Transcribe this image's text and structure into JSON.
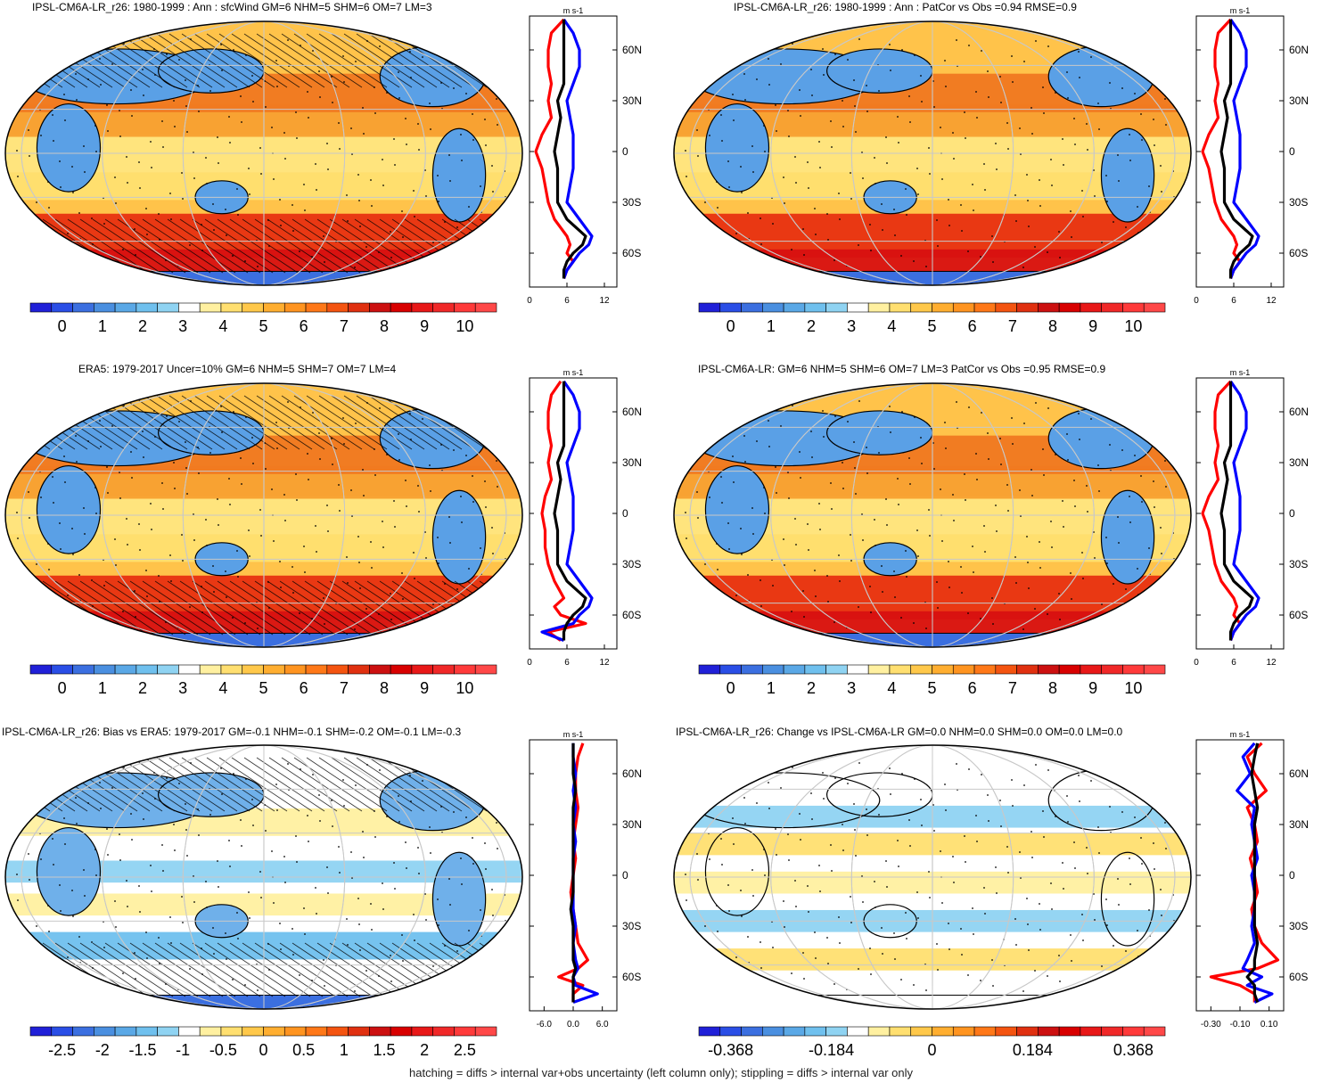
{
  "footnote": "hatching = diffs > internal var+obs uncertainty (left column only); stippling = diffs > internal var only",
  "profile_unit": "m s-1",
  "lat_ticks": [
    "60N",
    "30N",
    "0",
    "30S",
    "60S"
  ],
  "colorbars": {
    "wind": {
      "labels": [
        "0",
        "1",
        "2",
        "3",
        "4",
        "5",
        "6",
        "7",
        "8",
        "9",
        "10"
      ],
      "colors": [
        "#2020d8",
        "#2a4ee6",
        "#3b6fe0",
        "#4a8fe0",
        "#5aa8e6",
        "#6fc0ee",
        "#8fd3f2",
        "#ffffff",
        "#fff0a0",
        "#ffdf70",
        "#ffc84a",
        "#ffae30",
        "#ff9420",
        "#ff7818",
        "#f45410",
        "#e03010",
        "#cc1010",
        "#d80000",
        "#e81818",
        "#f02828",
        "#ff3a3a",
        "#ff4848"
      ]
    },
    "bias": {
      "labels": [
        "-2.5",
        "-2",
        "-1.5",
        "-1",
        "-0.5",
        "0",
        "0.5",
        "1",
        "1.5",
        "2",
        "2.5"
      ],
      "colors": [
        "#2020d8",
        "#2a4ee6",
        "#3b6fe0",
        "#4a8fe0",
        "#5aa8e6",
        "#6fc0ee",
        "#8fd3f2",
        "#ffffff",
        "#fff0a0",
        "#ffdf70",
        "#ffc84a",
        "#ffae30",
        "#ff9420",
        "#ff7818",
        "#f45410",
        "#e03010",
        "#cc1010",
        "#d80000",
        "#e81818",
        "#f02828",
        "#ff3a3a",
        "#ff4848"
      ]
    },
    "change": {
      "labels": [
        "-0.368",
        "-0.184",
        "0",
        "0.184",
        "0.368"
      ],
      "colors": [
        "#2020d8",
        "#2a4ee6",
        "#3b6fe0",
        "#4a8fe0",
        "#5aa8e6",
        "#6fc0ee",
        "#8fd3f2",
        "#ffffff",
        "#fff0a0",
        "#ffdf70",
        "#ffc84a",
        "#ffae30",
        "#ff9420",
        "#ff7818",
        "#f45410",
        "#e03010",
        "#cc1010",
        "#d80000",
        "#e81818",
        "#f02828",
        "#ff3a3a",
        "#ff4848"
      ]
    }
  },
  "panels": [
    {
      "id": "p1",
      "title": "IPSL-CM6A-LR_r26: 1980-1999 : Ann : sfcWind GM=6 NHM=5 SHM=6 OM=7 LM=3",
      "colorbar": "wind",
      "hatching": true,
      "profile_xticks": [
        "0",
        "6",
        "12"
      ],
      "profile_xlim": [
        0,
        14
      ]
    },
    {
      "id": "p2",
      "title": "IPSL-CM6A-LR_r26: 1980-1999 : Ann : PatCor vs Obs =0.94 RMSE=0.9",
      "colorbar": "wind",
      "hatching": false,
      "profile_xticks": [
        "0",
        "6",
        "12"
      ],
      "profile_xlim": [
        0,
        14
      ]
    },
    {
      "id": "p3",
      "title": "ERA5: 1979-2017 Uncer=10% GM=6 NHM=5 SHM=7 OM=7 LM=4",
      "colorbar": "wind",
      "hatching": true,
      "profile_xticks": [
        "0",
        "6",
        "12"
      ],
      "profile_xlim": [
        0,
        14
      ]
    },
    {
      "id": "p4",
      "title": "IPSL-CM6A-LR: GM=6 NHM=5 SHM=6 OM=7 LM=3 PatCor vs Obs =0.95 RMSE=0.9",
      "colorbar": "wind",
      "hatching": false,
      "profile_xticks": [
        "0",
        "6",
        "12"
      ],
      "profile_xlim": [
        0,
        14
      ]
    },
    {
      "id": "p5",
      "title": "IPSL-CM6A-LR_r26: Bias vs ERA5: 1979-2017 GM=-0.1 NHM=-0.1 SHM=-0.2 OM=-0.1 LM=-0.3",
      "colorbar": "bias",
      "hatching": true,
      "profile_xticks": [
        "-6.0",
        "0.0",
        "6.0"
      ],
      "profile_xlim": [
        -9,
        9
      ]
    },
    {
      "id": "p6",
      "title": "IPSL-CM6A-LR_r26: Change vs IPSL-CM6A-LR GM=0.0 NHM=0.0 SHM=0.0 OM=0.0 LM=0.0",
      "colorbar": "change",
      "hatching": false,
      "profile_xticks": [
        "-0.30",
        "-0.10",
        "0.10"
      ],
      "profile_xlim": [
        -0.4,
        0.2
      ]
    }
  ],
  "chart_data": [
    {
      "type": "line",
      "title": "IPSL-CM6A-LR_r26: 1980-1999 : Ann : sfcWind GM=6 NHM=5 SHM=6 OM=7 LM=3",
      "xlabel": "m s-1",
      "xlim": [
        0,
        14
      ],
      "ylim": [
        -80,
        80
      ],
      "y_lat": [
        78,
        70,
        60,
        50,
        40,
        30,
        20,
        10,
        0,
        -10,
        -20,
        -30,
        -40,
        -50,
        -55,
        -60,
        -65,
        -70,
        -75
      ],
      "series": [
        {
          "color": "#ff0000",
          "values": [
            5.5,
            3.5,
            3,
            3,
            3.5,
            3,
            3.5,
            2,
            1,
            2,
            2.5,
            3,
            4,
            6,
            6.5,
            6,
            7,
            6,
            5.5
          ]
        },
        {
          "color": "#0000ff",
          "values": [
            5.5,
            7,
            8,
            8,
            7,
            6,
            6.5,
            7,
            7,
            7,
            6.5,
            6,
            8,
            10,
            9.5,
            8,
            7,
            6,
            5.5
          ]
        },
        {
          "color": "#000000",
          "values": [
            5.5,
            5.5,
            5.5,
            5.5,
            5.5,
            4.5,
            5,
            4.5,
            4,
            4.5,
            4.5,
            4.5,
            6,
            9,
            8.5,
            7,
            6,
            5.5,
            5.5
          ]
        }
      ]
    },
    {
      "type": "line",
      "title": "IPSL-CM6A-LR_r26: 1980-1999 : Ann : PatCor vs Obs =0.94 RMSE=0.9",
      "xlabel": "m s-1",
      "xlim": [
        0,
        14
      ],
      "ylim": [
        -80,
        80
      ],
      "y_lat": [
        78,
        70,
        60,
        50,
        40,
        30,
        20,
        10,
        0,
        -10,
        -20,
        -30,
        -40,
        -50,
        -55,
        -60,
        -65,
        -70,
        -75
      ],
      "series": [
        {
          "color": "#ff0000",
          "values": [
            5.5,
            3.5,
            3,
            3,
            3.5,
            3,
            3.5,
            2,
            1,
            2,
            2.5,
            3,
            4,
            6,
            6.5,
            6,
            7,
            6,
            5.5
          ]
        },
        {
          "color": "#0000ff",
          "values": [
            5.5,
            7,
            8,
            8,
            7,
            6,
            6.5,
            7,
            7,
            7,
            6.5,
            6,
            8,
            10,
            9.5,
            8,
            7,
            6,
            5.5
          ]
        },
        {
          "color": "#000000",
          "values": [
            5.5,
            5.5,
            5.5,
            5.5,
            5.5,
            4.5,
            5,
            4.5,
            4,
            4.5,
            4.5,
            4.5,
            6,
            9,
            8.5,
            7,
            6,
            5.5,
            5.5
          ]
        }
      ]
    },
    {
      "type": "line",
      "title": "ERA5: 1979-2017 Uncer=10% GM=6 NHM=5 SHM=7 OM=7 LM=4",
      "xlabel": "m s-1",
      "xlim": [
        0,
        14
      ],
      "ylim": [
        -80,
        80
      ],
      "y_lat": [
        78,
        70,
        60,
        50,
        40,
        30,
        20,
        10,
        0,
        -10,
        -20,
        -30,
        -40,
        -50,
        -55,
        -60,
        -65,
        -70,
        -75
      ],
      "series": [
        {
          "color": "#ff0000",
          "values": [
            5,
            3.5,
            3,
            3,
            3.5,
            3,
            3.5,
            2.5,
            2,
            2.5,
            2.5,
            3,
            4,
            5.5,
            4,
            5,
            9,
            3,
            5
          ]
        },
        {
          "color": "#0000ff",
          "values": [
            5.5,
            7,
            8,
            8,
            7,
            6,
            6.5,
            7,
            7,
            7,
            6.5,
            6,
            8,
            10,
            9.5,
            8,
            7,
            2,
            5.5
          ]
        },
        {
          "color": "#000000",
          "values": [
            5.5,
            5.5,
            5.5,
            5.5,
            5.5,
            4.5,
            5,
            4.5,
            4,
            4.5,
            4.5,
            4.5,
            6,
            9,
            8.5,
            7,
            6,
            5.5,
            5.5
          ]
        }
      ]
    },
    {
      "type": "line",
      "title": "IPSL-CM6A-LR: GM=6 NHM=5 SHM=6 OM=7 LM=3 PatCor vs Obs =0.95 RMSE=0.9",
      "xlabel": "m s-1",
      "xlim": [
        0,
        14
      ],
      "ylim": [
        -80,
        80
      ],
      "y_lat": [
        78,
        70,
        60,
        50,
        40,
        30,
        20,
        10,
        0,
        -10,
        -20,
        -30,
        -40,
        -50,
        -55,
        -60,
        -65,
        -70,
        -75
      ],
      "series": [
        {
          "color": "#ff0000",
          "values": [
            5.5,
            3.5,
            3,
            3,
            3.5,
            3,
            3.5,
            2,
            1,
            2,
            2.5,
            3,
            4,
            6,
            6.5,
            6,
            7,
            6,
            5.5
          ]
        },
        {
          "color": "#0000ff",
          "values": [
            5.5,
            7,
            8,
            8,
            7,
            6,
            6.5,
            7,
            7,
            7,
            6.5,
            6,
            8,
            10,
            9.5,
            8,
            7,
            6,
            5.5
          ]
        },
        {
          "color": "#000000",
          "values": [
            5.5,
            5.5,
            5.5,
            5.5,
            5.5,
            4.5,
            5,
            4.5,
            4,
            4.5,
            4.5,
            4.5,
            6,
            9,
            8.5,
            7,
            6,
            5.5,
            5.5
          ]
        }
      ]
    },
    {
      "type": "line",
      "title": "IPSL-CM6A-LR_r26: Bias vs ERA5: 1979-2017 GM=-0.1 NHM=-0.1 SHM=-0.2 OM=-0.1 LM=-0.3",
      "xlabel": "m s-1",
      "xlim": [
        -9,
        9
      ],
      "ylim": [
        -80,
        80
      ],
      "y_lat": [
        78,
        70,
        60,
        50,
        40,
        30,
        20,
        10,
        0,
        -10,
        -20,
        -30,
        -40,
        -50,
        -55,
        -60,
        -65,
        -70,
        -75
      ],
      "series": [
        {
          "color": "#ff0000",
          "values": [
            2,
            1,
            0.5,
            0.5,
            1,
            0.5,
            0,
            0.5,
            0,
            -0.5,
            0,
            0.5,
            1,
            3,
            1,
            -3,
            2,
            0,
            0
          ]
        },
        {
          "color": "#0000ff",
          "values": [
            0,
            0,
            0.5,
            0,
            0.5,
            0,
            0.5,
            0,
            0,
            0,
            0,
            0.5,
            0,
            0.5,
            1,
            0,
            0.5,
            5,
            0
          ]
        },
        {
          "color": "#000000",
          "values": [
            0,
            0,
            0,
            0.5,
            0,
            0,
            0,
            0,
            0,
            0,
            -0.5,
            0,
            0,
            0,
            0.5,
            0,
            0,
            0,
            0
          ]
        }
      ]
    },
    {
      "type": "line",
      "title": "IPSL-CM6A-LR_r26: Change vs IPSL-CM6A-LR GM=0.0 NHM=0.0 SHM=0.0 OM=0.0 LM=0.0",
      "xlabel": "m s-1",
      "xlim": [
        -0.4,
        0.2
      ],
      "ylim": [
        -80,
        80
      ],
      "y_lat": [
        78,
        70,
        60,
        50,
        40,
        30,
        20,
        10,
        0,
        -10,
        -20,
        -30,
        -40,
        -50,
        -55,
        -60,
        -65,
        -70,
        -75
      ],
      "series": [
        {
          "color": "#ff0000",
          "values": [
            0.05,
            -0.05,
            0.0,
            0.08,
            -0.05,
            0.0,
            0.02,
            -0.03,
            0.0,
            0.02,
            -0.02,
            0.0,
            0.05,
            0.16,
            0.02,
            -0.3,
            -0.1,
            0.0,
            0.0
          ]
        },
        {
          "color": "#0000ff",
          "values": [
            0.0,
            -0.08,
            -0.03,
            -0.12,
            0.0,
            -0.02,
            0.0,
            0.02,
            -0.02,
            0.0,
            0.0,
            -0.02,
            0.0,
            -0.05,
            -0.08,
            0.05,
            -0.05,
            0.12,
            0.0
          ]
        },
        {
          "color": "#000000",
          "values": [
            0.02,
            0.0,
            -0.02,
            0.0,
            0.02,
            0.0,
            0.0,
            0.0,
            0.0,
            0.0,
            0.0,
            0.0,
            0.02,
            0.0,
            0.0,
            -0.05,
            0.0,
            0.0,
            0.02
          ]
        }
      ]
    }
  ]
}
